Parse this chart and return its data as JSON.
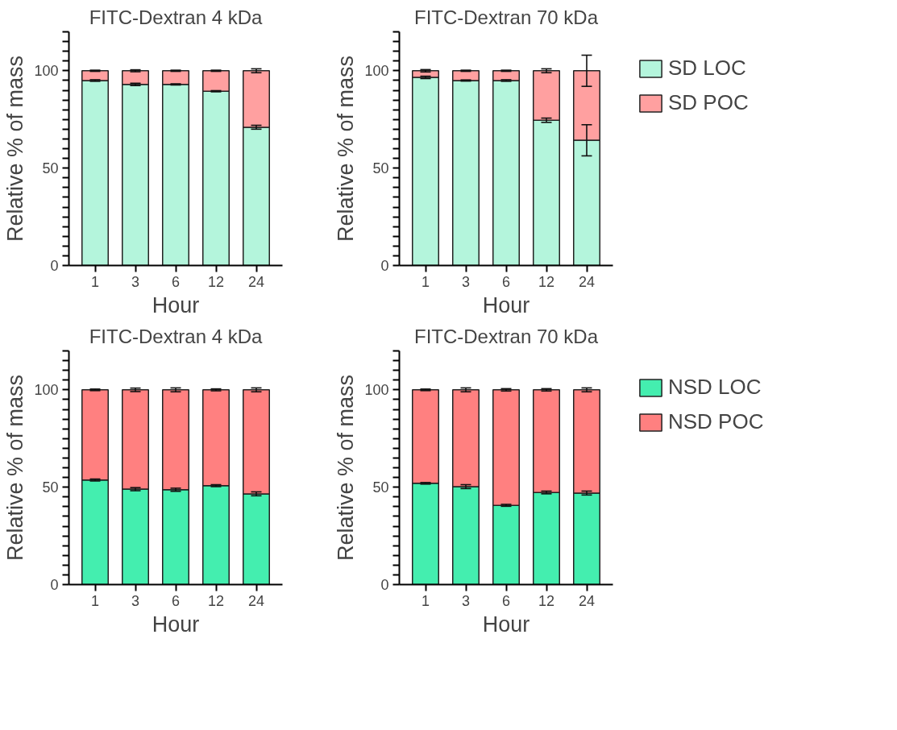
{
  "chart_data": [
    {
      "type": "bar",
      "stacked": true,
      "title": "FITC-Dextran 4 kDa",
      "xlabel": "Hour",
      "ylabel": "Relative % of mass",
      "categories": [
        "1",
        "3",
        "6",
        "12",
        "24"
      ],
      "ylim": [
        0,
        120
      ],
      "yticks": [
        0,
        {
          "value": 5,
          "label": null
        },
        {
          "value": 10,
          "label": null
        },
        {
          "value": 15,
          "label": null
        },
        {
          "value": 20,
          "label": null
        },
        {
          "value": 25,
          "label": null
        },
        {
          "value": 30,
          "label": null
        },
        {
          "value": 35,
          "label": null
        },
        {
          "value": 40,
          "label": null
        },
        {
          "value": 45,
          "label": null
        },
        50,
        {
          "value": 55,
          "label": null
        },
        {
          "value": 60,
          "label": null
        },
        {
          "value": 65,
          "label": null
        },
        {
          "value": 70,
          "label": null
        },
        {
          "value": 75,
          "label": null
        },
        {
          "value": 80,
          "label": null
        },
        {
          "value": 85,
          "label": null
        },
        {
          "value": 90,
          "label": null
        },
        {
          "value": 95,
          "label": null
        },
        100,
        {
          "value": 105,
          "label": null
        },
        {
          "value": 110,
          "label": null
        },
        {
          "value": 115,
          "label": null
        },
        {
          "value": 120,
          "label": null
        }
      ],
      "grid": false,
      "legend": false,
      "series": [
        {
          "color": "#b4f5dc",
          "values": [
            95,
            93,
            93,
            89.5,
            71
          ],
          "errors": [
            0.4,
            0.6,
            0.3,
            0.3,
            1
          ]
        },
        {
          "color": "#ffa0a0",
          "values": [
            5,
            7,
            7,
            10.5,
            29
          ],
          "errors": [
            0.3,
            0.5,
            0.3,
            0.3,
            1
          ]
        }
      ]
    },
    {
      "type": "bar",
      "stacked": true,
      "title": "FITC-Dextran 70 kDa",
      "xlabel": "Hour",
      "ylabel": "Relative % of mass",
      "categories": [
        "1",
        "3",
        "6",
        "12",
        "24"
      ],
      "ylim": [
        0,
        120
      ],
      "yticks": [
        0,
        {
          "value": 5,
          "label": null
        },
        {
          "value": 10,
          "label": null
        },
        {
          "value": 15,
          "label": null
        },
        {
          "value": 20,
          "label": null
        },
        {
          "value": 25,
          "label": null
        },
        {
          "value": 30,
          "label": null
        },
        {
          "value": 35,
          "label": null
        },
        {
          "value": 40,
          "label": null
        },
        {
          "value": 45,
          "label": null
        },
        50,
        {
          "value": 55,
          "label": null
        },
        {
          "value": 60,
          "label": null
        },
        {
          "value": 65,
          "label": null
        },
        {
          "value": 70,
          "label": null
        },
        {
          "value": 75,
          "label": null
        },
        {
          "value": 80,
          "label": null
        },
        {
          "value": 85,
          "label": null
        },
        {
          "value": 90,
          "label": null
        },
        {
          "value": 95,
          "label": null
        },
        100,
        {
          "value": 105,
          "label": null
        },
        {
          "value": 110,
          "label": null
        },
        {
          "value": 115,
          "label": null
        },
        {
          "value": 120,
          "label": null
        }
      ],
      "grid": false,
      "legend": "right",
      "series": [
        {
          "name": "SD LOC",
          "color": "#b4f5dc",
          "values": [
            96.6,
            95,
            95,
            74.6,
            64.3
          ],
          "errors": [
            0.6,
            0.3,
            0.4,
            1.1,
            8
          ]
        },
        {
          "name": "SD POC",
          "color": "#ffa0a0",
          "values": [
            3.4,
            5,
            5,
            25.4,
            35.7
          ],
          "errors": [
            0.6,
            0.3,
            0.3,
            1,
            8
          ]
        }
      ]
    },
    {
      "type": "bar",
      "stacked": true,
      "title": "FITC-Dextran 4 kDa",
      "xlabel": "Hour",
      "ylabel": "Relative % of mass",
      "categories": [
        "1",
        "3",
        "6",
        "12",
        "24"
      ],
      "ylim": [
        0,
        120
      ],
      "yticks": [
        0,
        {
          "value": 5,
          "label": null
        },
        {
          "value": 10,
          "label": null
        },
        {
          "value": 15,
          "label": null
        },
        {
          "value": 20,
          "label": null
        },
        {
          "value": 25,
          "label": null
        },
        {
          "value": 30,
          "label": null
        },
        {
          "value": 35,
          "label": null
        },
        {
          "value": 40,
          "label": null
        },
        {
          "value": 45,
          "label": null
        },
        50,
        {
          "value": 55,
          "label": null
        },
        {
          "value": 60,
          "label": null
        },
        {
          "value": 65,
          "label": null
        },
        {
          "value": 70,
          "label": null
        },
        {
          "value": 75,
          "label": null
        },
        {
          "value": 80,
          "label": null
        },
        {
          "value": 85,
          "label": null
        },
        {
          "value": 90,
          "label": null
        },
        {
          "value": 95,
          "label": null
        },
        100,
        {
          "value": 105,
          "label": null
        },
        {
          "value": 110,
          "label": null
        },
        {
          "value": 115,
          "label": null
        },
        {
          "value": 120,
          "label": null
        }
      ],
      "grid": false,
      "legend": false,
      "series": [
        {
          "color": "#44eeaf",
          "values": [
            53.7,
            49,
            48.7,
            50.8,
            46.6
          ],
          "errors": [
            0.5,
            0.8,
            0.8,
            0.5,
            1
          ]
        },
        {
          "color": "#ff8080",
          "values": [
            46.3,
            51,
            51.3,
            49.2,
            53.4
          ],
          "errors": [
            0.4,
            0.9,
            1,
            0.5,
            1
          ]
        }
      ]
    },
    {
      "type": "bar",
      "stacked": true,
      "title": "FITC-Dextran 70 kDa",
      "xlabel": "Hour",
      "ylabel": "Relative % of mass",
      "categories": [
        "1",
        "3",
        "6",
        "12",
        "24"
      ],
      "ylim": [
        0,
        120
      ],
      "yticks": [
        0,
        {
          "value": 5,
          "label": null
        },
        {
          "value": 10,
          "label": null
        },
        {
          "value": 15,
          "label": null
        },
        {
          "value": 20,
          "label": null
        },
        {
          "value": 25,
          "label": null
        },
        {
          "value": 30,
          "label": null
        },
        {
          "value": 35,
          "label": null
        },
        {
          "value": 40,
          "label": null
        },
        {
          "value": 45,
          "label": null
        },
        50,
        {
          "value": 55,
          "label": null
        },
        {
          "value": 60,
          "label": null
        },
        {
          "value": 65,
          "label": null
        },
        {
          "value": 70,
          "label": null
        },
        {
          "value": 75,
          "label": null
        },
        {
          "value": 80,
          "label": null
        },
        {
          "value": 85,
          "label": null
        },
        {
          "value": 90,
          "label": null
        },
        {
          "value": 95,
          "label": null
        },
        100,
        {
          "value": 105,
          "label": null
        },
        {
          "value": 110,
          "label": null
        },
        {
          "value": 115,
          "label": null
        },
        {
          "value": 120,
          "label": null
        }
      ],
      "grid": false,
      "legend": "right",
      "series": [
        {
          "name": "NSD LOC",
          "color": "#44eeaf",
          "values": [
            52,
            50.3,
            40.7,
            47.3,
            47
          ],
          "errors": [
            0.4,
            1,
            0.5,
            0.7,
            1
          ]
        },
        {
          "name": "NSD POC",
          "color": "#ff8080",
          "values": [
            48,
            49.7,
            59.3,
            52.7,
            53
          ],
          "errors": [
            0.4,
            1,
            0.6,
            0.6,
            1
          ]
        }
      ]
    }
  ]
}
